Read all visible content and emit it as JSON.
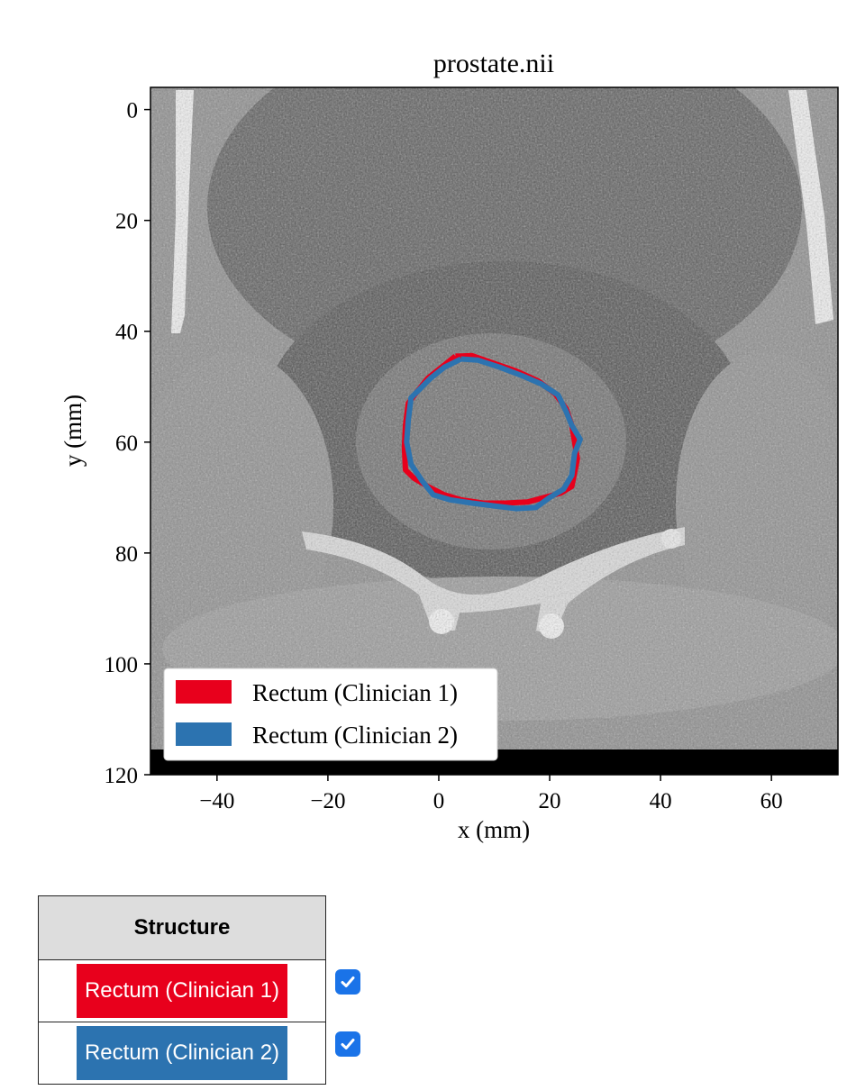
{
  "chart_data": {
    "type": "image",
    "title": "prostate.nii",
    "xlabel": "x (mm)",
    "ylabel": "y (mm)",
    "xlim": [
      -52,
      72
    ],
    "ylim": [
      120,
      -4
    ],
    "xticks": [
      -40,
      -20,
      0,
      20,
      40,
      60
    ],
    "xtick_labels": [
      "−40",
      "−20",
      "0",
      "20",
      "40",
      "60"
    ],
    "yticks": [
      0,
      20,
      40,
      60,
      80,
      100,
      120
    ],
    "ytick_labels": [
      "0",
      "20",
      "40",
      "60",
      "80",
      "100",
      "120"
    ],
    "legend_position": "lower-left",
    "series": [
      {
        "name": "Rectum (Clinician 1)",
        "color": "#e8001c",
        "x": [
          3,
          6,
          10,
          14,
          18,
          21,
          23,
          24,
          24.5,
          25,
          24.5,
          24,
          22,
          19,
          16,
          12,
          8,
          4,
          1,
          -2,
          -4.5,
          -6,
          -6.2,
          -6,
          -5.5,
          -4,
          -2,
          0.5,
          3
        ],
        "y": [
          44.5,
          44.4,
          45.8,
          47.2,
          49,
          51.3,
          54,
          57,
          60,
          63,
          65.5,
          68,
          69.2,
          70,
          70.8,
          71,
          71,
          70.4,
          69.5,
          68,
          66.5,
          65,
          61,
          57,
          53,
          51,
          48.5,
          46.5,
          44.5
        ]
      },
      {
        "name": "Rectum (Clinician 2)",
        "color": "#2c73b0",
        "x": [
          4,
          7,
          11,
          15,
          18.5,
          21.5,
          23,
          24,
          25.5,
          24.5,
          24,
          22.5,
          20,
          17.5,
          14,
          10,
          6,
          2,
          -1,
          -3,
          -5,
          -5.8,
          -5.5,
          -5,
          -3.5,
          -1.5,
          1,
          4
        ],
        "y": [
          45,
          45.2,
          46.5,
          48,
          49.5,
          51.5,
          54.5,
          57,
          59.5,
          62,
          66,
          68.5,
          70,
          71.8,
          72,
          71.5,
          71,
          70.4,
          69.5,
          67,
          64,
          60,
          56,
          52,
          50.5,
          48.5,
          46.5,
          45
        ]
      }
    ]
  },
  "table": {
    "header": "Structure",
    "rows": [
      {
        "label": "Rectum (Clinician 1)",
        "color": "#e8001c",
        "checked": true
      },
      {
        "label": "Rectum (Clinician 2)",
        "color": "#2c73b0",
        "checked": true
      }
    ]
  },
  "icons": {
    "checkbox": "checkmark-icon"
  }
}
